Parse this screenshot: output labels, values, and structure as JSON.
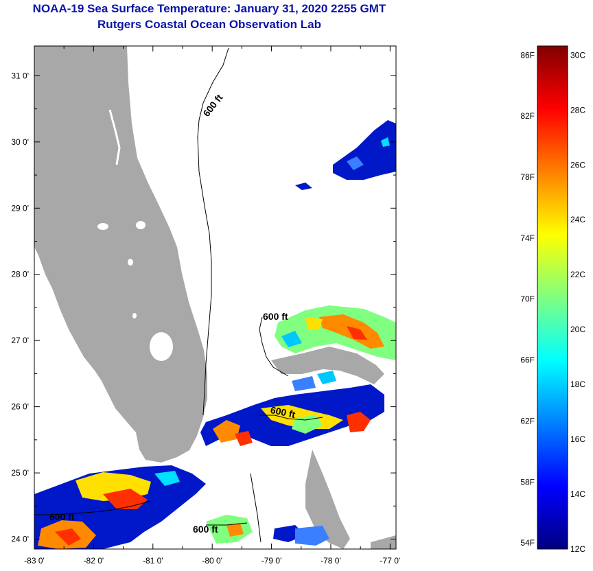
{
  "header": {
    "title": "NOAA-19 Sea Surface Temperature:  January 31, 2020 2255 GMT",
    "subtitle": "Rutgers Coastal Ocean Observation Lab"
  },
  "map": {
    "lon_range": [
      -83.0,
      -76.9
    ],
    "lat_range": [
      23.85,
      31.45
    ],
    "lon_ticks": [
      "-83 0'",
      "-82 0'",
      "-81 0'",
      "-80 0'",
      "-79 0'",
      "-78 0'",
      "-77 0'"
    ],
    "lat_ticks": [
      "24 0'",
      "25 0'",
      "26 0'",
      "27 0'",
      "28 0'",
      "29 0'",
      "30 0'",
      "31 0'"
    ],
    "contour_labels": [
      "600 ft",
      "600 ft",
      "600 ft",
      "600 ft",
      "600 ft"
    ],
    "colors": {
      "land": "#a8a8a8",
      "water_clouds": "#ffffff"
    }
  },
  "colorbar": {
    "f_labels": [
      "86F",
      "82F",
      "78F",
      "74F",
      "70F",
      "66F",
      "62F",
      "58F",
      "54F"
    ],
    "c_labels": [
      "30C",
      "28C",
      "26C",
      "24C",
      "22C",
      "20C",
      "18C",
      "16C",
      "14C",
      "12C"
    ],
    "stops": [
      "#800000",
      "#ff0000",
      "#ff8000",
      "#ffff00",
      "#80ff80",
      "#00ffff",
      "#0080ff",
      "#0000ff",
      "#000080"
    ]
  }
}
